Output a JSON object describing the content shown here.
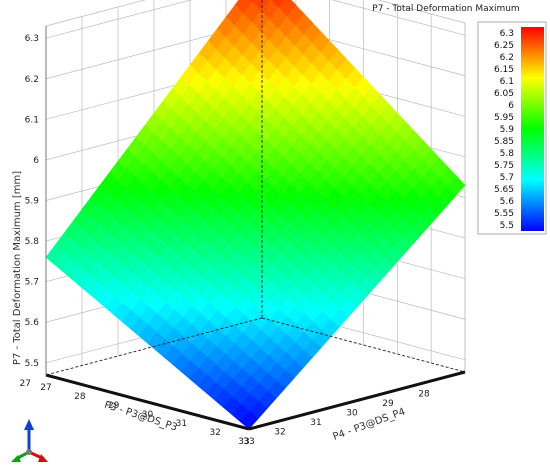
{
  "chart_data": {
    "type": "surface",
    "title": "P7 - Total Deformation Maximum",
    "zlabel": "P7 - Total Deformation Maximum  [mm]",
    "xlabel": "P3 - P3@DS_P3",
    "ylabel": "P4 - P3@DS_P4",
    "x_ticks": [
      "28",
      "29",
      "30",
      "31",
      "32",
      "33"
    ],
    "y_ticks": [
      "27",
      "28",
      "29",
      "30",
      "31",
      "32",
      "33"
    ],
    "z_ticks": [
      "5.5",
      "5.6",
      "5.7",
      "5.8",
      "5.9",
      "6",
      "6.1",
      "6.2",
      "6.3"
    ],
    "xlim": [
      27,
      33
    ],
    "ylim": [
      27,
      33
    ],
    "zlim": [
      5.47,
      6.33
    ],
    "corners": {
      "x27_y27": 6.33,
      "x33_y27": 5.76,
      "x27_y33": 5.93,
      "x33_y33": 5.47
    },
    "colorbar": {
      "ticks": [
        "6.3",
        "6.25",
        "6.2",
        "6.15",
        "6.1",
        "6.05",
        "6",
        "5.95",
        "5.9",
        "5.85",
        "5.8",
        "5.75",
        "5.7",
        "5.65",
        "5.6",
        "5.55",
        "5.5"
      ],
      "range": [
        5.475,
        6.325
      ],
      "colors": [
        "#0000ff",
        "#00ffff",
        "#00ff00",
        "#ffff00",
        "#ff0000"
      ]
    },
    "grid": true
  }
}
